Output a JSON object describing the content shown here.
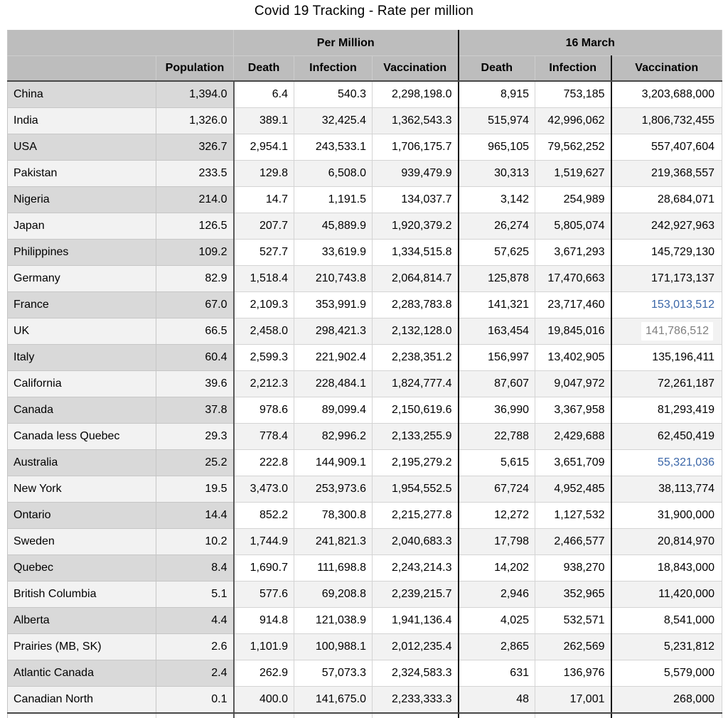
{
  "title": "Covid 19 Tracking - Rate per million",
  "table": {
    "group_headers": {
      "blank": "",
      "per_million": "Per Million",
      "march16": "16 March"
    },
    "columns": {
      "population": "Population",
      "death": "Death",
      "infection": "Infection",
      "vaccination": "Vaccination"
    },
    "rows": [
      {
        "name": "China",
        "population": "1,394.0",
        "death_pm": "6.4",
        "infection_pm": "540.3",
        "vaccination_pm": "2,298,198.0",
        "death_16": "8,915",
        "infection_16": "753,185",
        "vaccination_16": "3,203,688,000",
        "vaccination_16_style": "default"
      },
      {
        "name": "India",
        "population": "1,326.0",
        "death_pm": "389.1",
        "infection_pm": "32,425.4",
        "vaccination_pm": "1,362,543.3",
        "death_16": "515,974",
        "infection_16": "42,996,062",
        "vaccination_16": "1,806,732,455",
        "vaccination_16_style": "default"
      },
      {
        "name": "USA",
        "population": "326.7",
        "death_pm": "2,954.1",
        "infection_pm": "243,533.1",
        "vaccination_pm": "1,706,175.7",
        "death_16": "965,105",
        "infection_16": "79,562,252",
        "vaccination_16": "557,407,604",
        "vaccination_16_style": "default"
      },
      {
        "name": "Pakistan",
        "population": "233.5",
        "death_pm": "129.8",
        "infection_pm": "6,508.0",
        "vaccination_pm": "939,479.9",
        "death_16": "30,313",
        "infection_16": "1,519,627",
        "vaccination_16": "219,368,557",
        "vaccination_16_style": "default"
      },
      {
        "name": "Nigeria",
        "population": "214.0",
        "death_pm": "14.7",
        "infection_pm": "1,191.5",
        "vaccination_pm": "134,037.7",
        "death_16": "3,142",
        "infection_16": "254,989",
        "vaccination_16": "28,684,071",
        "vaccination_16_style": "default"
      },
      {
        "name": "Japan",
        "population": "126.5",
        "death_pm": "207.7",
        "infection_pm": "45,889.9",
        "vaccination_pm": "1,920,379.2",
        "death_16": "26,274",
        "infection_16": "5,805,074",
        "vaccination_16": "242,927,963",
        "vaccination_16_style": "default"
      },
      {
        "name": "Philippines",
        "population": "109.2",
        "death_pm": "527.7",
        "infection_pm": "33,619.9",
        "vaccination_pm": "1,334,515.8",
        "death_16": "57,625",
        "infection_16": "3,671,293",
        "vaccination_16": "145,729,130",
        "vaccination_16_style": "default"
      },
      {
        "name": "Germany",
        "population": "82.9",
        "death_pm": "1,518.4",
        "infection_pm": "210,743.8",
        "vaccination_pm": "2,064,814.7",
        "death_16": "125,878",
        "infection_16": "17,470,663",
        "vaccination_16": "171,173,137",
        "vaccination_16_style": "default"
      },
      {
        "name": "France",
        "population": "67.0",
        "death_pm": "2,109.3",
        "infection_pm": "353,991.9",
        "vaccination_pm": "2,283,783.8",
        "death_16": "141,321",
        "infection_16": "23,717,460",
        "vaccination_16": "153,013,512",
        "vaccination_16_style": "blue"
      },
      {
        "name": "UK",
        "population": "66.5",
        "death_pm": "2,458.0",
        "infection_pm": "298,421.3",
        "vaccination_pm": "2,132,128.0",
        "death_16": "163,454",
        "infection_16": "19,845,016",
        "vaccination_16": "141,786,512",
        "vaccination_16_style": "muted_highlight"
      },
      {
        "name": "Italy",
        "population": "60.4",
        "death_pm": "2,599.3",
        "infection_pm": "221,902.4",
        "vaccination_pm": "2,238,351.2",
        "death_16": "156,997",
        "infection_16": "13,402,905",
        "vaccination_16": "135,196,411",
        "vaccination_16_style": "default"
      },
      {
        "name": "California",
        "population": "39.6",
        "death_pm": "2,212.3",
        "infection_pm": "228,484.1",
        "vaccination_pm": "1,824,777.4",
        "death_16": "87,607",
        "infection_16": "9,047,972",
        "vaccination_16": "72,261,187",
        "vaccination_16_style": "default"
      },
      {
        "name": "Canada",
        "population": "37.8",
        "death_pm": "978.6",
        "infection_pm": "89,099.4",
        "vaccination_pm": "2,150,619.6",
        "death_16": "36,990",
        "infection_16": "3,367,958",
        "vaccination_16": "81,293,419",
        "vaccination_16_style": "default"
      },
      {
        "name": "Canada less Quebec",
        "population": "29.3",
        "death_pm": "778.4",
        "infection_pm": "82,996.2",
        "vaccination_pm": "2,133,255.9",
        "death_16": "22,788",
        "infection_16": "2,429,688",
        "vaccination_16": "62,450,419",
        "vaccination_16_style": "default"
      },
      {
        "name": "Australia",
        "population": "25.2",
        "death_pm": "222.8",
        "infection_pm": "144,909.1",
        "vaccination_pm": "2,195,279.2",
        "death_16": "5,615",
        "infection_16": "3,651,709",
        "vaccination_16": "55,321,036",
        "vaccination_16_style": "blue"
      },
      {
        "name": "New York",
        "population": "19.5",
        "death_pm": "3,473.0",
        "infection_pm": "253,973.6",
        "vaccination_pm": "1,954,552.5",
        "death_16": "67,724",
        "infection_16": "4,952,485",
        "vaccination_16": "38,113,774",
        "vaccination_16_style": "default"
      },
      {
        "name": "Ontario",
        "population": "14.4",
        "death_pm": "852.2",
        "infection_pm": "78,300.8",
        "vaccination_pm": "2,215,277.8",
        "death_16": "12,272",
        "infection_16": "1,127,532",
        "vaccination_16": "31,900,000",
        "vaccination_16_style": "default"
      },
      {
        "name": "Sweden",
        "population": "10.2",
        "death_pm": "1,744.9",
        "infection_pm": "241,821.3",
        "vaccination_pm": "2,040,683.3",
        "death_16": "17,798",
        "infection_16": "2,466,577",
        "vaccination_16": "20,814,970",
        "vaccination_16_style": "default"
      },
      {
        "name": "Quebec",
        "population": "8.4",
        "death_pm": "1,690.7",
        "infection_pm": "111,698.8",
        "vaccination_pm": "2,243,214.3",
        "death_16": "14,202",
        "infection_16": "938,270",
        "vaccination_16": "18,843,000",
        "vaccination_16_style": "default"
      },
      {
        "name": "British Columbia",
        "population": "5.1",
        "death_pm": "577.6",
        "infection_pm": "69,208.8",
        "vaccination_pm": "2,239,215.7",
        "death_16": "2,946",
        "infection_16": "352,965",
        "vaccination_16": "11,420,000",
        "vaccination_16_style": "default"
      },
      {
        "name": "Alberta",
        "population": "4.4",
        "death_pm": "914.8",
        "infection_pm": "121,038.9",
        "vaccination_pm": "1,941,136.4",
        "death_16": "4,025",
        "infection_16": "532,571",
        "vaccination_16": "8,541,000",
        "vaccination_16_style": "default"
      },
      {
        "name": "Prairies (MB, SK)",
        "population": "2.6",
        "death_pm": "1,101.9",
        "infection_pm": "100,988.1",
        "vaccination_pm": "2,012,235.4",
        "death_16": "2,865",
        "infection_16": "262,569",
        "vaccination_16": "5,231,812",
        "vaccination_16_style": "default"
      },
      {
        "name": "Atlantic Canada",
        "population": "2.4",
        "death_pm": "262.9",
        "infection_pm": "57,073.3",
        "vaccination_pm": "2,324,583.3",
        "death_16": "631",
        "infection_16": "136,976",
        "vaccination_16": "5,579,000",
        "vaccination_16_style": "default"
      },
      {
        "name": "Canadian North",
        "population": "0.1",
        "death_pm": "400.0",
        "infection_pm": "141,675.0",
        "vaccination_pm": "2,233,333.3",
        "death_16": "48",
        "infection_16": "17,001",
        "vaccination_16": "268,000",
        "vaccination_16_style": "default"
      }
    ]
  },
  "colors": {
    "accent_blue": "#3A66A8",
    "muted_text": "#7F7F7F",
    "header_bg": "#BDBDBD",
    "label_column_bg": "#D9D9D9",
    "stripe_bg": "#F2F2F2"
  }
}
